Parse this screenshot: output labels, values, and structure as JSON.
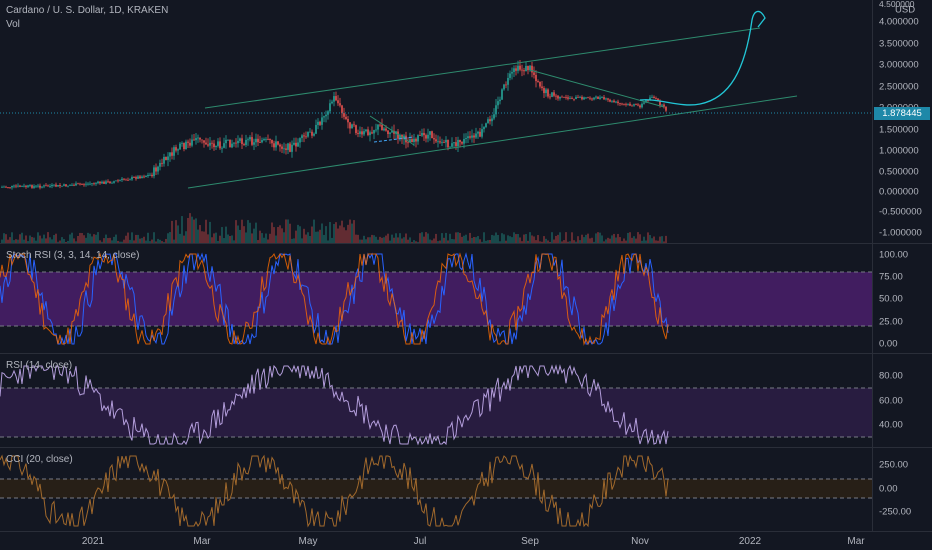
{
  "header": {
    "symbol_title": "Cardano / U. S. Dollar, 1D, KRAKEN",
    "volume_label": "Vol"
  },
  "price_axis": {
    "currency": "USD",
    "top_tick": "4.500000",
    "ticks": [
      "4.000000",
      "3.500000",
      "3.000000",
      "2.500000",
      "2.000000",
      "1.500000",
      "1.000000",
      "0.500000",
      "0.000000",
      "-0.500000",
      "-1.000000"
    ],
    "last_price": "1.878445"
  },
  "stoch_rsi": {
    "label": "Stoch RSI (3, 3, 14, 14, close)",
    "ticks": [
      "100.00",
      "75.00",
      "50.00",
      "25.00",
      "0.00"
    ],
    "band": [
      20,
      80
    ]
  },
  "rsi": {
    "label": "RSI (14, close)",
    "ticks": [
      "80.00",
      "60.00",
      "40.00"
    ],
    "band": [
      30,
      70
    ]
  },
  "cci": {
    "label": "CCI (20, close)",
    "ticks": [
      "250.00",
      "0.00",
      "-250.00"
    ],
    "band": [
      -100,
      100
    ]
  },
  "time_axis": {
    "labels": [
      "2021",
      "Mar",
      "May",
      "Jul",
      "Sep",
      "Nov",
      "2022",
      "Mar"
    ]
  },
  "colors": {
    "background": "#131722",
    "up": "#26a69a",
    "down": "#ef5350",
    "channel": "#2e8b6e",
    "projection": "#22c6d6",
    "stoch_band": "#4a1f6b",
    "rsi_band": "#2b1d44"
  }
}
